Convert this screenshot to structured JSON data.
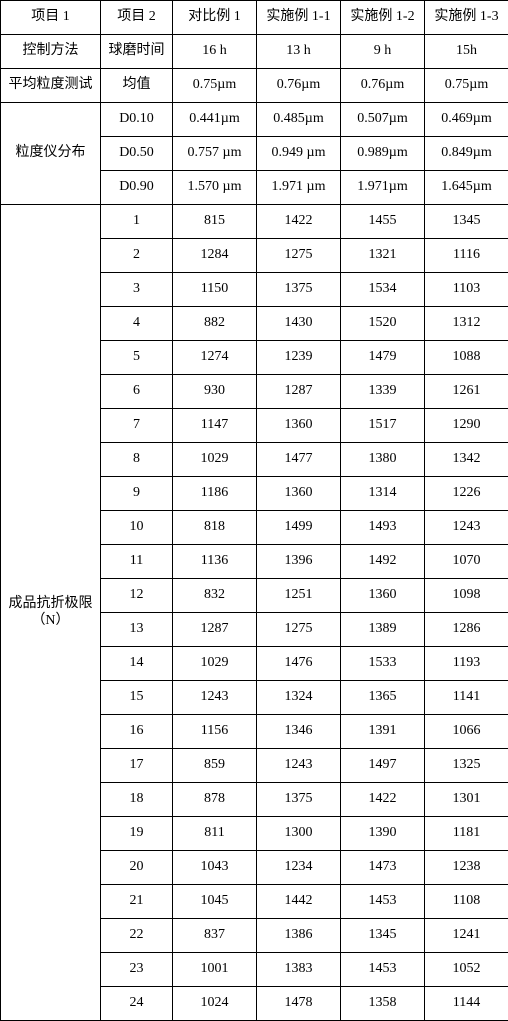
{
  "columns": [
    "项目 1",
    "项目 2",
    "对比例 1",
    "实施例 1-1",
    "实施例 1-2",
    "实施例 1-3"
  ],
  "control": {
    "label": "控制方法",
    "item": "球磨时间",
    "vals": [
      "16 h",
      "13 h",
      "9 h",
      "15h"
    ]
  },
  "avg": {
    "label": "平均粒度测试",
    "item": "均值",
    "vals": [
      "0.75µm",
      "0.76µm",
      "0.76µm",
      "0.75µm"
    ]
  },
  "dist": {
    "label": "粒度仪分布",
    "rows": [
      {
        "item": "D0.10",
        "vals": [
          "0.441µm",
          "0.485µm",
          "0.507µm",
          "0.469µm"
        ]
      },
      {
        "item": "D0.50",
        "vals": [
          "0.757 µm",
          "0.949 µm",
          "0.989µm",
          "0.849µm"
        ]
      },
      {
        "item": "D0.90",
        "vals": [
          "1.570 µm",
          "1.971 µm",
          "1.971µm",
          "1.645µm"
        ]
      }
    ]
  },
  "strength": {
    "label_l1": "成品抗折极限",
    "label_l2": "（N）",
    "rows": [
      {
        "item": "1",
        "vals": [
          "815",
          "1422",
          "1455",
          "1345"
        ]
      },
      {
        "item": "2",
        "vals": [
          "1284",
          "1275",
          "1321",
          "1116"
        ]
      },
      {
        "item": "3",
        "vals": [
          "1150",
          "1375",
          "1534",
          "1103"
        ]
      },
      {
        "item": "4",
        "vals": [
          "882",
          "1430",
          "1520",
          "1312"
        ]
      },
      {
        "item": "5",
        "vals": [
          "1274",
          "1239",
          "1479",
          "1088"
        ]
      },
      {
        "item": "6",
        "vals": [
          "930",
          "1287",
          "1339",
          "1261"
        ]
      },
      {
        "item": "7",
        "vals": [
          "1147",
          "1360",
          "1517",
          "1290"
        ]
      },
      {
        "item": "8",
        "vals": [
          "1029",
          "1477",
          "1380",
          "1342"
        ]
      },
      {
        "item": "9",
        "vals": [
          "1186",
          "1360",
          "1314",
          "1226"
        ]
      },
      {
        "item": "10",
        "vals": [
          "818",
          "1499",
          "1493",
          "1243"
        ]
      },
      {
        "item": "11",
        "vals": [
          "1136",
          "1396",
          "1492",
          "1070"
        ]
      },
      {
        "item": "12",
        "vals": [
          "832",
          "1251",
          "1360",
          "1098"
        ]
      },
      {
        "item": "13",
        "vals": [
          "1287",
          "1275",
          "1389",
          "1286"
        ]
      },
      {
        "item": "14",
        "vals": [
          "1029",
          "1476",
          "1533",
          "1193"
        ]
      },
      {
        "item": "15",
        "vals": [
          "1243",
          "1324",
          "1365",
          "1141"
        ]
      },
      {
        "item": "16",
        "vals": [
          "1156",
          "1346",
          "1391",
          "1066"
        ]
      },
      {
        "item": "17",
        "vals": [
          "859",
          "1243",
          "1497",
          "1325"
        ]
      },
      {
        "item": "18",
        "vals": [
          "878",
          "1375",
          "1422",
          "1301"
        ]
      },
      {
        "item": "19",
        "vals": [
          "811",
          "1300",
          "1390",
          "1181"
        ]
      },
      {
        "item": "20",
        "vals": [
          "1043",
          "1234",
          "1473",
          "1238"
        ]
      },
      {
        "item": "21",
        "vals": [
          "1045",
          "1442",
          "1453",
          "1108"
        ]
      },
      {
        "item": "22",
        "vals": [
          "837",
          "1386",
          "1345",
          "1241"
        ]
      },
      {
        "item": "23",
        "vals": [
          "1001",
          "1383",
          "1453",
          "1052"
        ]
      },
      {
        "item": "24",
        "vals": [
          "1024",
          "1478",
          "1358",
          "1144"
        ]
      }
    ]
  }
}
